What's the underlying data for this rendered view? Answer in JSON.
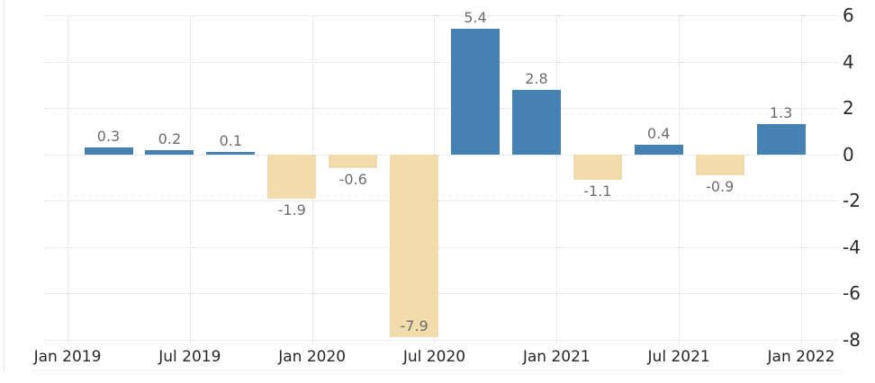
{
  "chart_data": {
    "type": "bar",
    "title": "",
    "xlabel": "",
    "ylabel": "",
    "categories": [
      "2019 Q1",
      "2019 Q2",
      "2019 Q3",
      "2019 Q4",
      "2020 Q1",
      "2020 Q2",
      "2020 Q3",
      "2020 Q4",
      "2021 Q1",
      "2021 Q2",
      "2021 Q3",
      "2021 Q4"
    ],
    "values": [
      0.3,
      0.2,
      0.1,
      -1.9,
      -0.6,
      -7.9,
      5.4,
      2.8,
      -1.1,
      0.4,
      -0.9,
      1.3
    ],
    "bar_labels": [
      "0.3",
      "0.2",
      "0.1",
      "-1.9",
      "-0.6",
      "-7.9",
      "5.4",
      "2.8",
      "-1.1",
      "0.4",
      "-0.9",
      "1.3"
    ],
    "x_tick_labels": [
      "Jan 2019",
      "Jul 2019",
      "Jan 2020",
      "Jul 2020",
      "Jan 2021",
      "Jul 2021",
      "Jan 2022"
    ],
    "y_ticks": [
      6,
      4,
      2,
      0,
      -2,
      -4,
      -6,
      -8
    ],
    "ylim": [
      -8,
      6
    ],
    "grid": "dotted",
    "legend": "none",
    "colors": {
      "positive_bar": "#4581b2",
      "negative_bar": "#f2dcab",
      "gridline": "#d9d9d9",
      "value_label": "#6d6d6d",
      "axis_label": "#26262b",
      "background": "#ffffff"
    }
  }
}
